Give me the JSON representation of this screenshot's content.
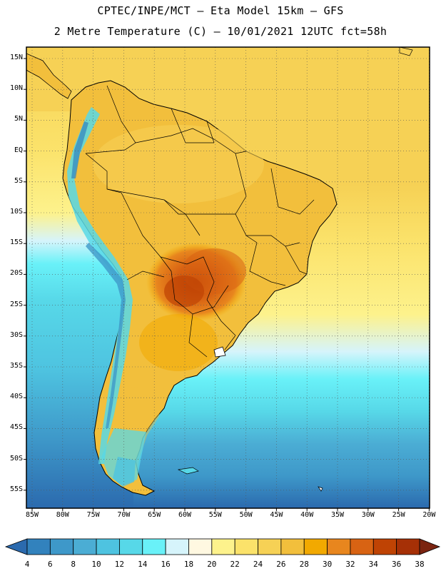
{
  "header": {
    "line1": "CPTEC/INPE/MCT –  Eta Model 15km – GFS",
    "line2": "2 Metre Temperature (C) – 10/01/2021 12UTC fct=58h"
  },
  "axes": {
    "lat_labels": [
      "15N",
      "10N",
      "5N",
      "EQ",
      "5S",
      "10S",
      "15S",
      "20S",
      "25S",
      "30S",
      "35S",
      "40S",
      "45S",
      "50S",
      "55S"
    ],
    "lon_labels": [
      "85W",
      "80W",
      "75W",
      "70W",
      "65W",
      "60W",
      "55W",
      "50W",
      "45W",
      "40W",
      "35W",
      "30W",
      "25W",
      "20W"
    ]
  },
  "colorbar": {
    "labels": [
      "4",
      "6",
      "8",
      "10",
      "12",
      "14",
      "16",
      "18",
      "20",
      "22",
      "24",
      "26",
      "28",
      "30",
      "32",
      "34",
      "36",
      "38"
    ],
    "colors": [
      "#2b6aae",
      "#3282bd",
      "#3e98c9",
      "#4badd4",
      "#4ec3e0",
      "#57d8e8",
      "#69f1f8",
      "#d6f4fb",
      "#fff8e1",
      "#fdf28c",
      "#fbe26a",
      "#f6d155",
      "#f2bf3c",
      "#f2a900",
      "#e8861e",
      "#d86313",
      "#bf4304",
      "#a63006",
      "#7b2410"
    ]
  },
  "colors": {
    "ocean_south": "#4badd4",
    "ocean_tropical": "#f6d155",
    "land_warm": "#f2bf3c",
    "land_hot": "#d86313",
    "andes_cold": "#57d8e8",
    "border": "#000000",
    "grid": "#555555"
  }
}
